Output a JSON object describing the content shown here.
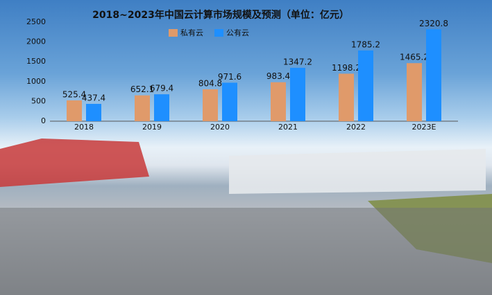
{
  "chart_data": {
    "type": "bar",
    "title": "2018~2023年中国云计算市场规模及预测（单位：亿元）",
    "categories": [
      "2018",
      "2019",
      "2020",
      "2021",
      "2022",
      "2023E"
    ],
    "series": [
      {
        "name": "私有云",
        "color": "#e09a6a",
        "values": [
          525.4,
          652.1,
          804.8,
          983.4,
          1198.2,
          1465.2
        ]
      },
      {
        "name": "公有云",
        "color": "#1e8fff",
        "values": [
          437.4,
          679.4,
          971.6,
          1347.2,
          1785.2,
          2320.8
        ]
      }
    ],
    "ylim": [
      0,
      2500
    ],
    "yticks": [
      0,
      500,
      1000,
      1500,
      2000,
      2500
    ],
    "grid": false
  }
}
